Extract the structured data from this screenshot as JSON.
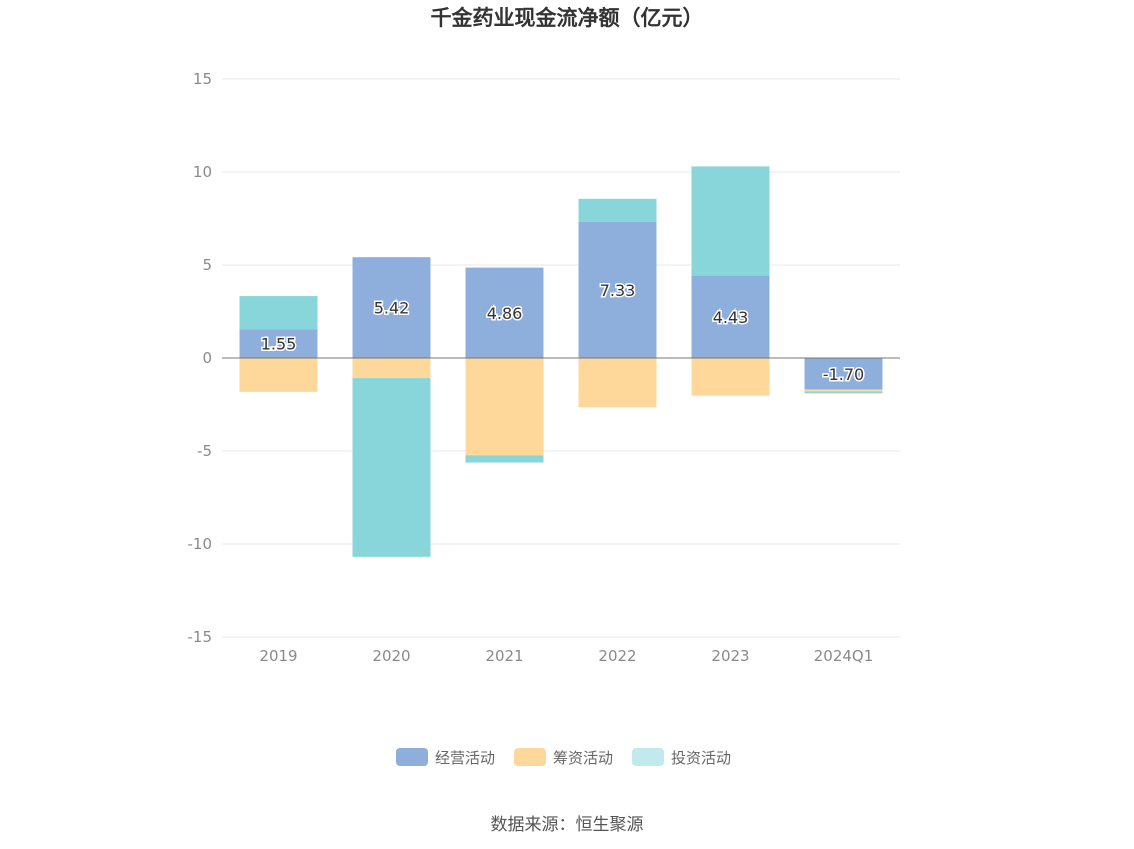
{
  "source": "数据来源：恒生聚源",
  "chart_data": {
    "type": "bar",
    "stacked": true,
    "title": "千金药业现金流净额（亿元）",
    "xlabel": "",
    "ylabel": "",
    "categories": [
      "2019",
      "2020",
      "2021",
      "2022",
      "2023",
      "2024Q1"
    ],
    "ylim": [
      -15,
      15
    ],
    "yticks": [
      15,
      10,
      5,
      0,
      -5,
      -10,
      -15
    ],
    "grid": true,
    "legend_position": "bottom",
    "series": [
      {
        "name": "经营活动",
        "color": "#8eaedc",
        "show_labels": true,
        "values": [
          1.55,
          5.42,
          4.86,
          7.33,
          4.43,
          -1.7
        ],
        "labels": [
          "1.55",
          "5.42",
          "4.86",
          "7.33",
          "4.43",
          "-1.70"
        ]
      },
      {
        "name": "筹资活动",
        "color": "#fed89a",
        "show_labels": false,
        "values": [
          -1.82,
          -1.08,
          -5.24,
          -2.65,
          -2.03,
          -0.1
        ]
      },
      {
        "name": "投资活动",
        "color": "#88d5da",
        "legend_color": "#c0eaec",
        "show_labels": false,
        "values": [
          1.78,
          -9.61,
          -0.38,
          1.23,
          5.87,
          -0.1
        ]
      }
    ]
  }
}
